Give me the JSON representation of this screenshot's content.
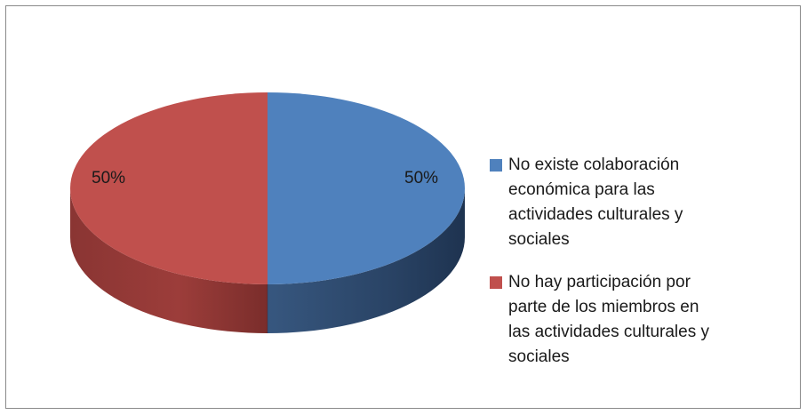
{
  "chart_data": {
    "type": "pie",
    "title": "",
    "categories": [
      "No existe colaboración económica para las actividades culturales y sociales",
      "No hay participación por parte de los miembros en las actividades culturales y sociales"
    ],
    "values": [
      50,
      50
    ],
    "data_labels": [
      "50%",
      "50%"
    ],
    "colors": [
      "#4f81bd",
      "#c0504d"
    ],
    "legend_position": "right",
    "style": "3d"
  },
  "legend": {
    "items": [
      {
        "label_lines": [
          "No existe colaboración",
          "económica para las",
          "actividades culturales y",
          "sociales"
        ],
        "color": "#4f81bd"
      },
      {
        "label_lines": [
          "No hay participación por",
          "parte de los miembros en",
          "las actividades culturales y",
          "sociales"
        ],
        "color": "#c0504d"
      }
    ]
  }
}
